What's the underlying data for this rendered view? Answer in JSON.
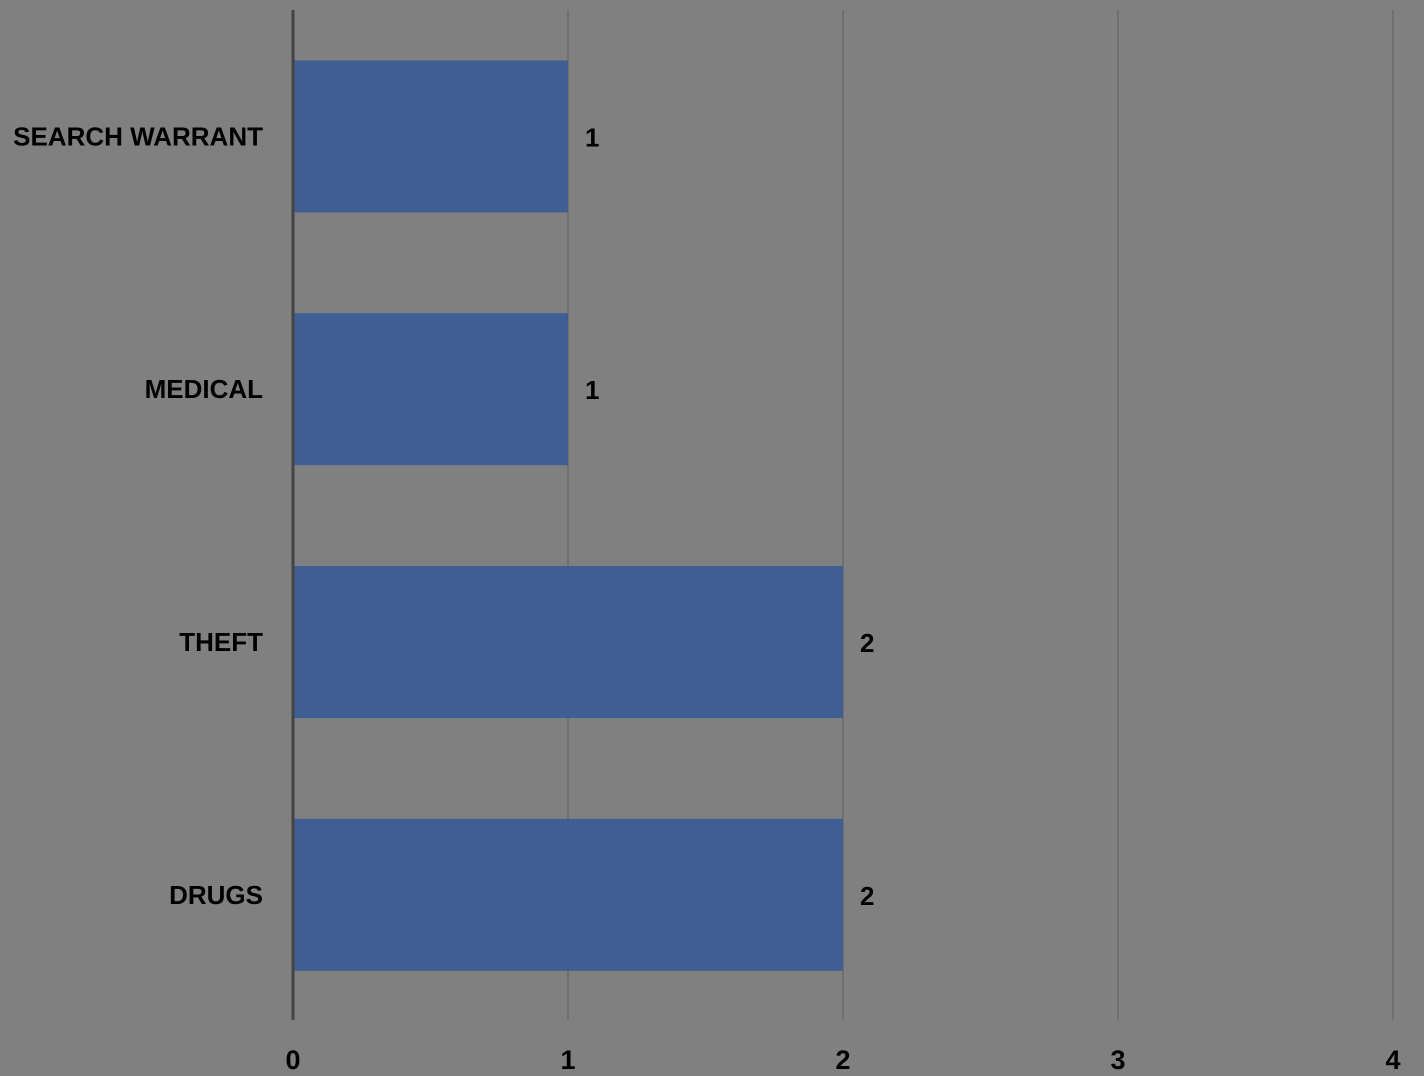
{
  "chart_data": {
    "type": "bar",
    "orientation": "horizontal",
    "categories": [
      "SEARCH WARRANT",
      "MEDICAL",
      "THEFT",
      "DRUGS"
    ],
    "values": [
      1,
      1,
      2,
      2
    ],
    "data_labels": [
      "1",
      "1",
      "2",
      "2"
    ],
    "xlim": [
      0,
      4
    ],
    "x_ticks": [
      "0",
      "1",
      "2",
      "3",
      "4"
    ],
    "grid": "vertical",
    "legend": "none",
    "colors": {
      "background": "#808080",
      "bar": "#3c5d94",
      "gridline": "#6b6b6b",
      "axis": "#444444",
      "text": "#000000"
    }
  }
}
